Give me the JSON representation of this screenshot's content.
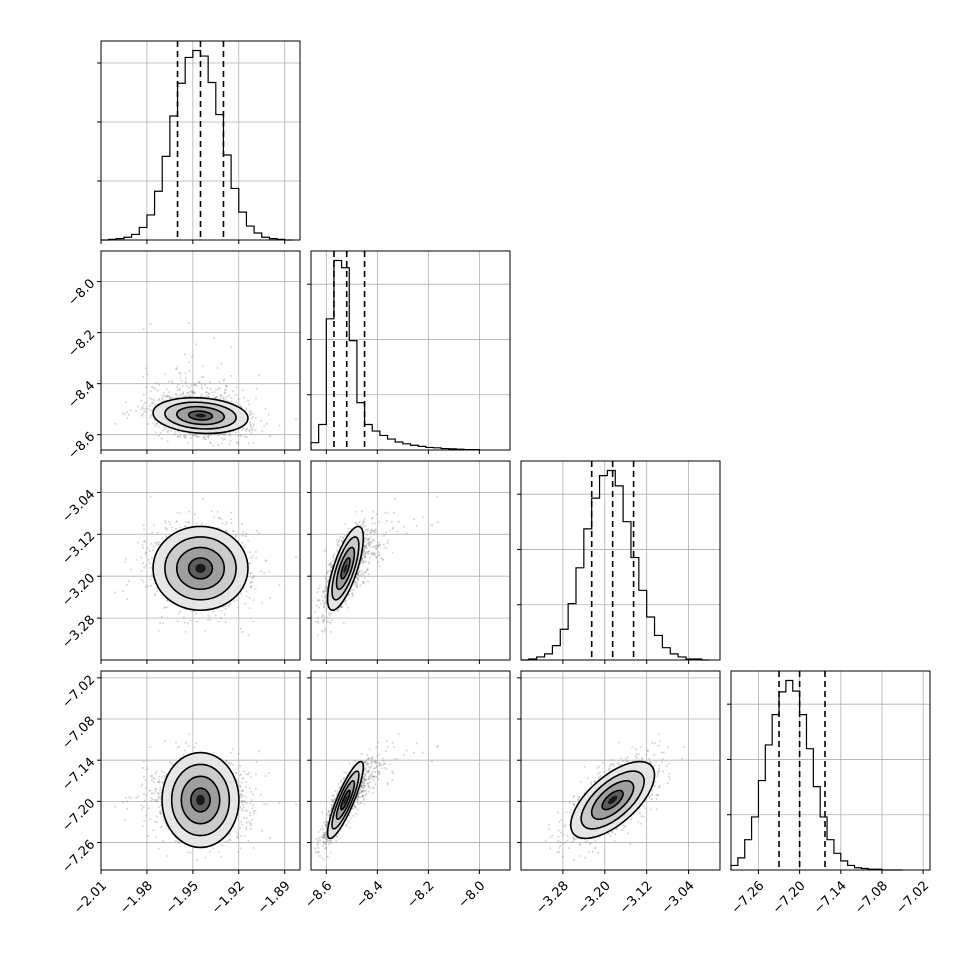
{
  "chart_data": {
    "type": "corner",
    "title": "",
    "grid": true,
    "params": [
      {
        "range": [
          -2.01,
          -1.88
        ],
        "ticks": [
          -2.01,
          -1.98,
          -1.95,
          -1.92,
          -1.89
        ],
        "tick_labels": [
          "−2.01",
          "−1.98",
          "−1.95",
          "−1.92",
          "−1.89"
        ],
        "quantiles": [
          -1.96,
          -1.945,
          -1.93
        ]
      },
      {
        "range": [
          -8.66,
          -7.88
        ],
        "ticks": [
          -8.6,
          -8.4,
          -8.2,
          -8.0
        ],
        "tick_labels": [
          "−8.6",
          "−8.4",
          "−8.2",
          "−8.0"
        ],
        "quantiles": [
          -8.57,
          -8.52,
          -8.45
        ]
      },
      {
        "range": [
          -3.36,
          -2.98
        ],
        "ticks": [
          -3.28,
          -3.2,
          -3.12,
          -3.04
        ],
        "tick_labels": [
          "−3.28",
          "−3.20",
          "−3.12",
          "−3.04"
        ],
        "quantiles": [
          -3.225,
          -3.185,
          -3.145
        ]
      },
      {
        "range": [
          -7.3,
          -7.01
        ],
        "ticks": [
          -7.26,
          -7.2,
          -7.14,
          -7.08,
          -7.02
        ],
        "tick_labels": [
          "−7.26",
          "−7.20",
          "−7.14",
          "−7.08",
          "−7.02"
        ],
        "quantiles": [
          -7.23,
          -7.2,
          -7.163
        ]
      }
    ],
    "histograms": [
      {
        "bins": [
          -2.01,
          -2.005,
          -2.0,
          -1.995,
          -1.99,
          -1.985,
          -1.98,
          -1.975,
          -1.97,
          -1.965,
          -1.96,
          -1.955,
          -1.95,
          -1.945,
          -1.94,
          -1.935,
          -1.93,
          -1.925,
          -1.92,
          -1.915,
          -1.91,
          -1.905,
          -1.9,
          -1.895,
          -1.89,
          -1.885
        ],
        "counts": [
          0,
          1,
          2,
          4,
          8,
          18,
          36,
          70,
          120,
          178,
          225,
          262,
          272,
          264,
          226,
          180,
          122,
          74,
          40,
          20,
          10,
          4,
          2,
          1,
          0
        ]
      },
      {
        "bins": [
          -8.66,
          -8.63,
          -8.6,
          -8.57,
          -8.54,
          -8.51,
          -8.48,
          -8.45,
          -8.42,
          -8.39,
          -8.36,
          -8.33,
          -8.3,
          -8.27,
          -8.24,
          -8.21,
          -8.18,
          -8.15,
          -8.12,
          -8.09,
          -8.06,
          -8.03,
          -8.0
        ],
        "counts": [
          20,
          70,
          360,
          520,
          500,
          300,
          130,
          70,
          52,
          40,
          30,
          22,
          17,
          13,
          10,
          7,
          6,
          4,
          3,
          2,
          1,
          1
        ]
      },
      {
        "bins": [
          -3.36,
          -3.345,
          -3.33,
          -3.315,
          -3.3,
          -3.285,
          -3.27,
          -3.255,
          -3.24,
          -3.225,
          -3.21,
          -3.195,
          -3.18,
          -3.165,
          -3.15,
          -3.135,
          -3.12,
          -3.105,
          -3.09,
          -3.075,
          -3.06,
          -3.045,
          -3.03,
          -3.015,
          -3.0
        ],
        "counts": [
          0,
          1,
          3,
          6,
          14,
          30,
          55,
          90,
          128,
          158,
          180,
          185,
          170,
          135,
          100,
          68,
          42,
          24,
          12,
          6,
          3,
          1,
          1,
          0
        ]
      },
      {
        "bins": [
          -7.3,
          -7.29,
          -7.28,
          -7.27,
          -7.26,
          -7.25,
          -7.24,
          -7.23,
          -7.22,
          -7.21,
          -7.2,
          -7.19,
          -7.18,
          -7.17,
          -7.16,
          -7.15,
          -7.14,
          -7.13,
          -7.12,
          -7.11,
          -7.1,
          -7.09,
          -7.08,
          -7.07,
          -7.06,
          -7.05
        ],
        "counts": [
          6,
          16,
          40,
          70,
          118,
          165,
          205,
          235,
          250,
          236,
          205,
          160,
          110,
          70,
          40,
          22,
          12,
          6,
          3,
          2,
          1,
          1,
          0,
          0,
          0
        ]
      }
    ],
    "posterior": {
      "mean": [
        -1.945,
        -8.525,
        -3.185,
        -7.198
      ],
      "sd": [
        0.0155,
        0.035,
        0.04,
        0.028
      ],
      "skew_scale": [
        0,
        0.14,
        0,
        0
      ],
      "correlation": [
        [
          1.0,
          -0.15,
          0.0,
          0.0
        ],
        [
          -0.15,
          1.0,
          0.72,
          0.86
        ],
        [
          0.0,
          0.72,
          1.0,
          0.65
        ],
        [
          0.0,
          0.86,
          0.65,
          1.0
        ]
      ],
      "contour_levels_sigma": [
        0.5,
        1.0,
        1.5,
        2.0
      ]
    }
  }
}
